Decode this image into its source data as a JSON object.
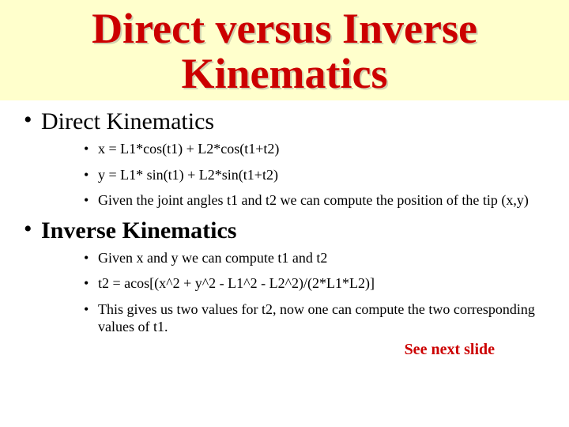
{
  "title": "Direct versus Inverse Kinematics",
  "colors": {
    "banner_bg": "#ffffcc",
    "title_color": "#cc0000",
    "body_text": "#000000",
    "link_color": "#cc0000",
    "page_bg": "#ffffff"
  },
  "typography": {
    "title_fontsize": 54,
    "section_fontsize": 30,
    "bullet_fontsize": 18,
    "seenext_fontsize": 20,
    "font_family": "Times New Roman"
  },
  "sections": [
    {
      "heading": "Direct Kinematics",
      "heading_bold": false,
      "bullets": [
        "x = L1*cos(t1) + L2*cos(t1+t2)",
        "y = L1* sin(t1) + L2*sin(t1+t2)",
        "Given the joint angles t1 and t2 we can compute the position of the tip (x,y)"
      ]
    },
    {
      "heading": "Inverse Kinematics",
      "heading_bold": true,
      "bullets": [
        "Given x and y we can compute t1 and t2",
        "t2 = acos[(x^2 + y^2 - L1^2 - L2^2)/(2*L1*L2)]",
        "This gives us two values for t2, now one can compute the two corresponding values of t1."
      ]
    }
  ],
  "footer_link": "See next slide"
}
